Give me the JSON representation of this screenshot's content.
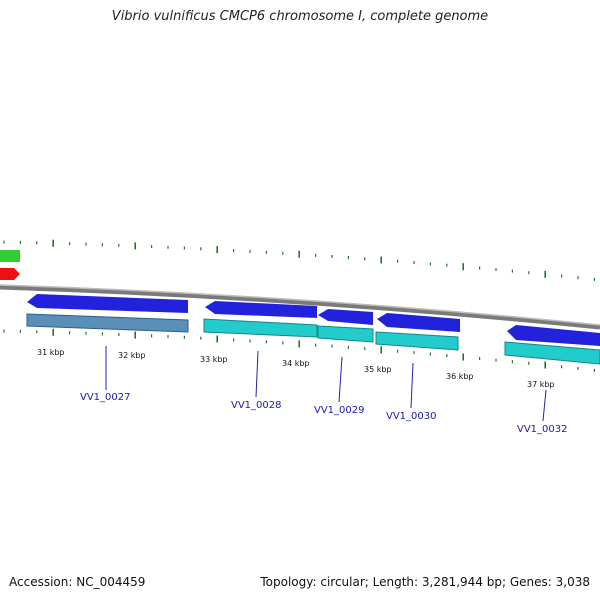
{
  "header": {
    "title": "Vibrio vulnificus CMCP6 chromosome I, complete genome"
  },
  "footer": {
    "accession": "Accession: NC_004459",
    "summary": "Topology: circular; Length: 3,281,944 bp; Genes: 3,038"
  },
  "colors": {
    "backbone": "#7a7a7a",
    "forward_gene": "#2222dd",
    "cds_block": "#22cccc",
    "cds_block_alt": "#5a8fb8",
    "tick": "#227722",
    "label_link": "#2222aa",
    "top_strand_green": "#33cc33",
    "top_strand_red": "#ee1111"
  },
  "axis": {
    "tick_labels": [
      "31 kbp",
      "32 kbp",
      "33 kbp",
      "34 kbp",
      "35 kbp",
      "36 kbp",
      "37 kbp"
    ]
  },
  "genes": [
    {
      "locus": "VV1_0027"
    },
    {
      "locus": "VV1_0028"
    },
    {
      "locus": "VV1_0029"
    },
    {
      "locus": "VV1_0030"
    },
    {
      "locus": "VV1_0032"
    }
  ]
}
